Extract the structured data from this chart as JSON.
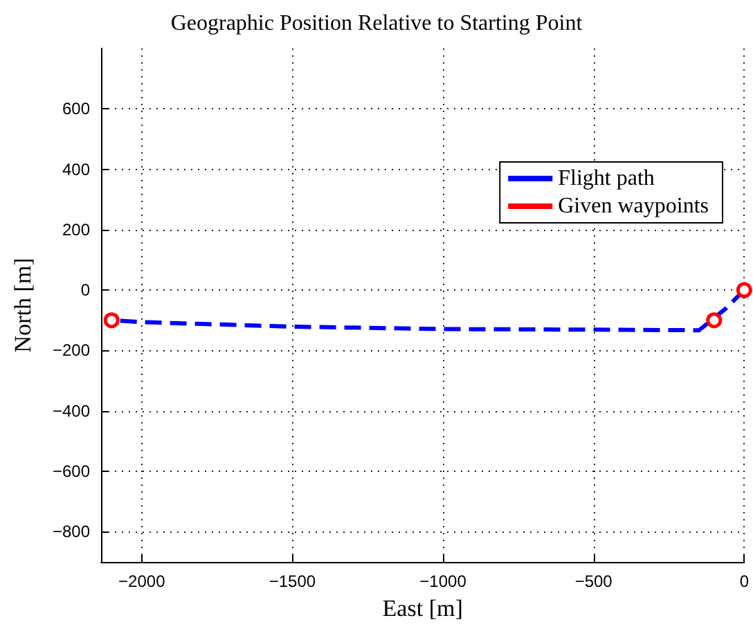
{
  "chart_data": {
    "type": "line",
    "title": "Geographic Position Relative to Starting Point",
    "xlabel": "East [m]",
    "ylabel": "North [m]",
    "xlim": [
      -2135,
      0
    ],
    "xticks": [
      -2000,
      -1500,
      -1000,
      -500,
      0
    ],
    "ylim": [
      -900,
      800
    ],
    "yticks": [
      -800,
      -600,
      -400,
      -200,
      0,
      200,
      400,
      600
    ],
    "grid": true,
    "legend": "top right",
    "series": [
      {
        "name": "Flight path",
        "color": "#0000ff",
        "line_style": "dashed",
        "marker": "none",
        "x": [
          0,
          -60,
          -150,
          -500,
          -1000,
          -1500,
          -2000,
          -2100
        ],
        "values": [
          0,
          -60,
          -133,
          -131,
          -129,
          -121,
          -106,
          -100
        ]
      },
      {
        "name": "Given waypoints",
        "type": "scatter",
        "color": "#ff0000",
        "marker": "circle",
        "x": [
          0,
          -100,
          -2100
        ],
        "values": [
          0,
          -100,
          -100
        ]
      }
    ]
  }
}
